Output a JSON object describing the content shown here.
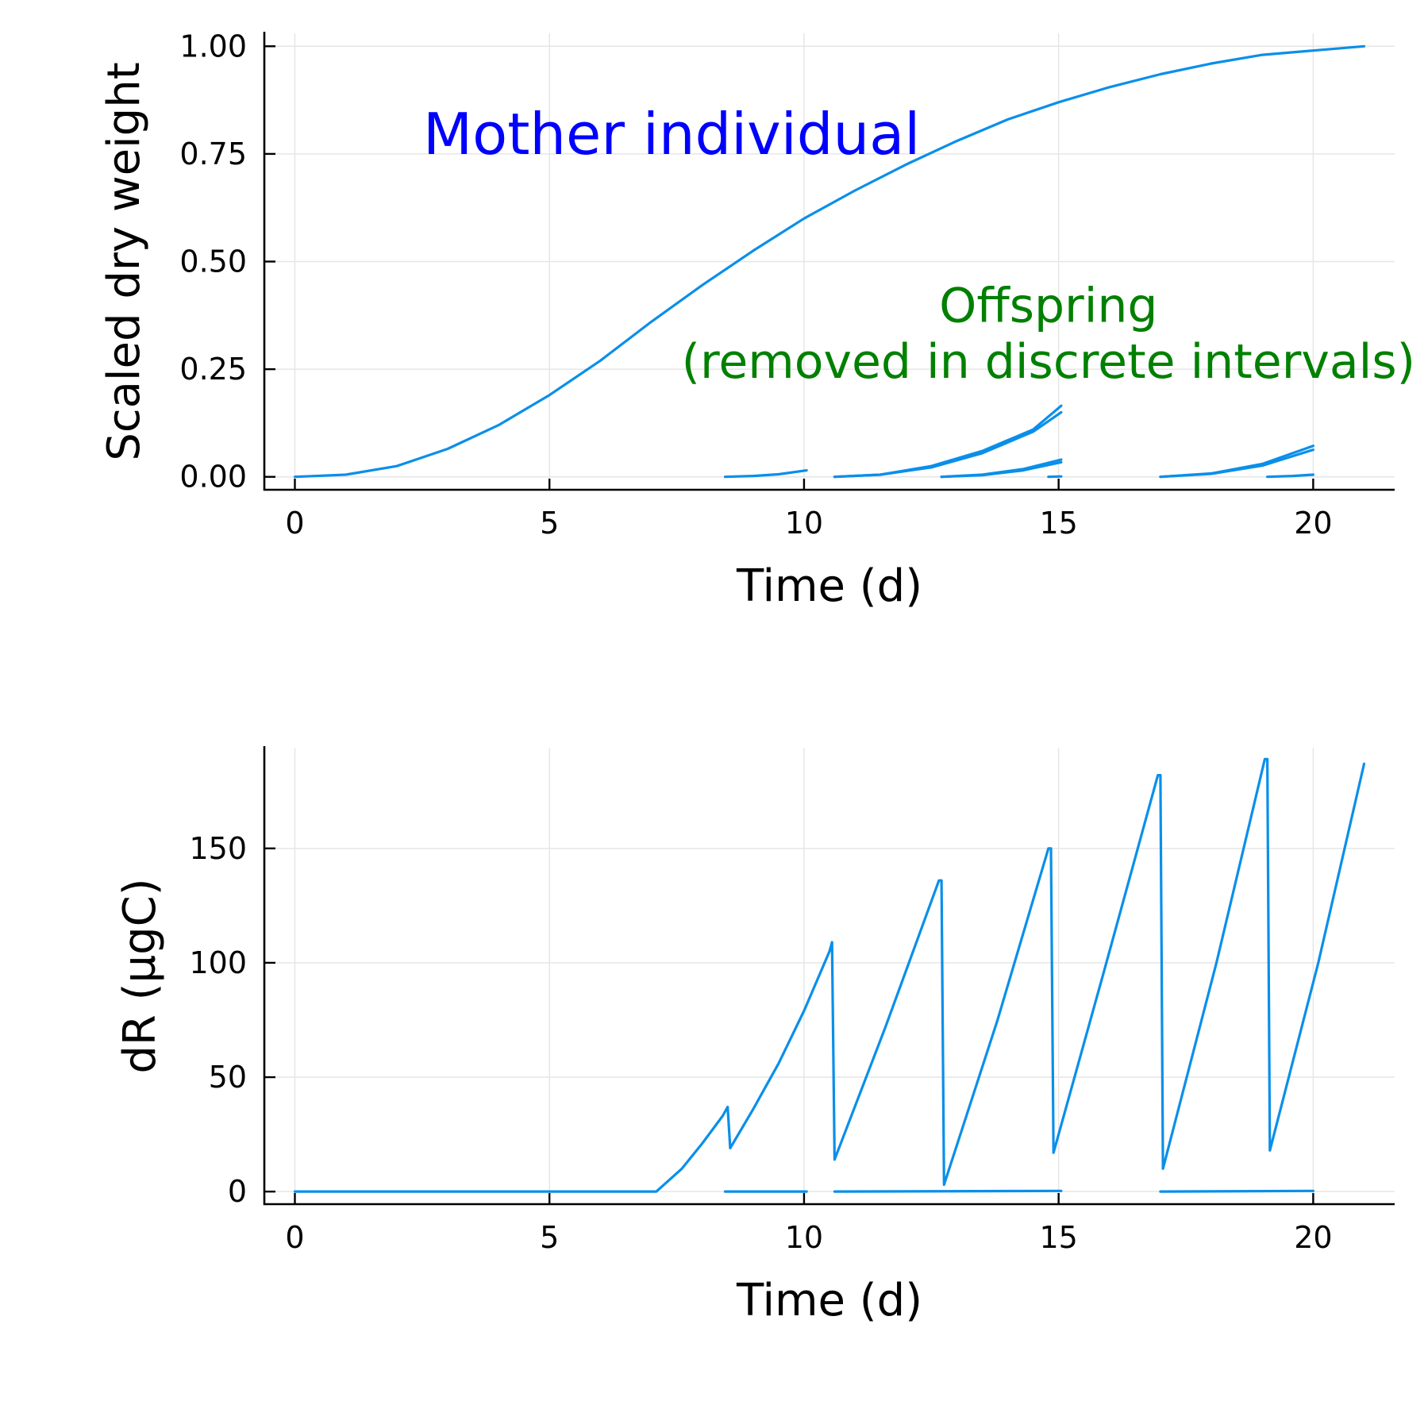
{
  "chart_data": [
    {
      "type": "line",
      "xlabel": "Time (d)",
      "ylabel": "Scaled dry weight",
      "xlim": [
        -0.6,
        21.6
      ],
      "ylim": [
        -0.03,
        1.03
      ],
      "xticks": [
        0,
        5,
        10,
        15,
        20
      ],
      "xtick_labels": [
        "0",
        "5",
        "10",
        "15",
        "20"
      ],
      "yticks": [
        0,
        0.25,
        0.5,
        0.75,
        1.0
      ],
      "ytick_labels": [
        "0.00",
        "0.25",
        "0.50",
        "0.75",
        "1.00"
      ],
      "grid": true,
      "legend": "none",
      "annotations": [
        {
          "text": "Mother individual",
          "x": 7.4,
          "y": 0.75,
          "color": "#0000ff"
        },
        {
          "text": "Offspring",
          "x": 14.8,
          "y": 0.36,
          "color": "#008000"
        },
        {
          "text": "(removed in discrete intervals)",
          "x": 14.8,
          "y": 0.23,
          "color": "#008000"
        }
      ],
      "series": [
        {
          "x": [
            0,
            1,
            2,
            3,
            4,
            5,
            6,
            7,
            8,
            9,
            10,
            11,
            12,
            13,
            14,
            15,
            16,
            17,
            18,
            19,
            20,
            21
          ],
          "y": [
            0,
            0.005,
            0.025,
            0.065,
            0.12,
            0.19,
            0.27,
            0.36,
            0.445,
            0.525,
            0.6,
            0.665,
            0.725,
            0.78,
            0.83,
            0.87,
            0.905,
            0.935,
            0.96,
            0.98,
            0.99,
            1.0
          ]
        },
        {
          "x": [
            8.45,
            9.0,
            9.5,
            10.05
          ],
          "y": [
            0,
            0.002,
            0.006,
            0.015
          ]
        },
        {
          "x": [
            10.6,
            11.5,
            12.5,
            13.5,
            14.5,
            15.05
          ],
          "y": [
            0,
            0.005,
            0.025,
            0.06,
            0.11,
            0.165
          ]
        },
        {
          "x": [
            10.6,
            11.5,
            12.5,
            13.5,
            14.5,
            15.05
          ],
          "y": [
            0,
            0.005,
            0.022,
            0.055,
            0.105,
            0.15
          ]
        },
        {
          "x": [
            12.7,
            13.5,
            14.3,
            15.05
          ],
          "y": [
            0,
            0.005,
            0.018,
            0.04
          ]
        },
        {
          "x": [
            12.7,
            13.5,
            14.3,
            15.05
          ],
          "y": [
            0,
            0.004,
            0.015,
            0.034
          ]
        },
        {
          "x": [
            14.8,
            15.05
          ],
          "y": [
            0,
            0.001
          ]
        },
        {
          "x": [
            17.0,
            18.0,
            19.0,
            20.0
          ],
          "y": [
            0,
            0.008,
            0.03,
            0.072
          ]
        },
        {
          "x": [
            17.0,
            18.0,
            19.0,
            20.0
          ],
          "y": [
            0,
            0.007,
            0.026,
            0.063
          ]
        },
        {
          "x": [
            19.1,
            19.6,
            20.0
          ],
          "y": [
            0,
            0.002,
            0.005
          ]
        }
      ]
    },
    {
      "type": "line",
      "xlabel": "Time (d)",
      "ylabel": "dR (µgC)",
      "xlim": [
        -0.6,
        21.6
      ],
      "ylim": [
        -5.5,
        194
      ],
      "xticks": [
        0,
        5,
        10,
        15,
        20
      ],
      "xtick_labels": [
        "0",
        "5",
        "10",
        "15",
        "20"
      ],
      "yticks": [
        0,
        50,
        100,
        150
      ],
      "ytick_labels": [
        "0",
        "50",
        "100",
        "150"
      ],
      "grid": true,
      "legend": "none",
      "series": [
        {
          "x": [
            0,
            7.1,
            7.6,
            8.0,
            8.4,
            8.5,
            8.55,
            9.0,
            9.5,
            10.0,
            10.5,
            10.55,
            10.6,
            11.6,
            12.65,
            12.7,
            12.75,
            13.8,
            14.8,
            14.85,
            14.9,
            15.9,
            16.95,
            17.0,
            17.05,
            18.1,
            19.05,
            19.1,
            19.15,
            20.1,
            21.0
          ],
          "y": [
            0,
            0,
            10,
            21,
            33,
            37,
            19,
            36,
            56,
            79,
            105,
            109,
            14,
            72,
            136,
            136,
            3,
            75,
            150,
            150,
            17,
            97,
            182,
            182,
            10,
            100,
            189,
            189,
            18,
            100,
            187
          ]
        },
        {
          "x": [
            8.45,
            10.05
          ],
          "y": [
            0,
            0
          ]
        },
        {
          "x": [
            10.6,
            15.05
          ],
          "y": [
            0,
            0.3
          ]
        },
        {
          "x": [
            17.0,
            20.0
          ],
          "y": [
            0,
            0.3
          ]
        }
      ]
    }
  ]
}
